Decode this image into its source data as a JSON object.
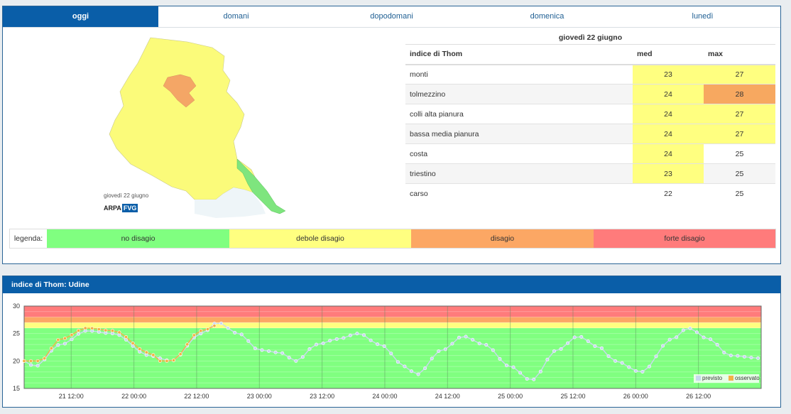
{
  "tabs": [
    {
      "label": "oggi",
      "active": true
    },
    {
      "label": "domani",
      "active": false
    },
    {
      "label": "dopodomani",
      "active": false
    },
    {
      "label": "domenica",
      "active": false
    },
    {
      "label": "lunedì",
      "active": false
    }
  ],
  "map": {
    "date_caption": "giovedì 22 giugno",
    "logo_a": "ARPA",
    "logo_b": "FVG"
  },
  "table": {
    "date": "giovedì 22 giugno",
    "headers": {
      "name": "indice di Thom",
      "med": "med",
      "max": "max"
    },
    "rows": [
      {
        "name": "monti",
        "med": "23",
        "max": "27",
        "med_class": "y",
        "max_class": "y"
      },
      {
        "name": "tolmezzino",
        "med": "24",
        "max": "28",
        "med_class": "y",
        "max_class": "o"
      },
      {
        "name": "colli alta pianura",
        "med": "24",
        "max": "27",
        "med_class": "y",
        "max_class": "y"
      },
      {
        "name": "bassa media pianura",
        "med": "24",
        "max": "27",
        "med_class": "y",
        "max_class": "y"
      },
      {
        "name": "costa",
        "med": "24",
        "max": "25",
        "med_class": "y",
        "max_class": ""
      },
      {
        "name": "triestino",
        "med": "23",
        "max": "25",
        "med_class": "y",
        "max_class": ""
      },
      {
        "name": "carso",
        "med": "22",
        "max": "25",
        "med_class": "",
        "max_class": ""
      }
    ]
  },
  "legend": {
    "label": "legenda:",
    "items": [
      "no disagio",
      "debole disagio",
      "disagio",
      "forte disagio"
    ]
  },
  "bottom": {
    "title": "indice di Thom: Udine"
  },
  "colors": {
    "accent": "#0a5ea8",
    "no_disagio": "#80ff80",
    "debole": "#ffff80",
    "disagio": "#fca764",
    "forte": "#ff7b7b"
  },
  "chart_data": {
    "type": "line",
    "ylim": [
      15,
      30
    ],
    "yticks": [
      "15",
      "20",
      "25",
      "30"
    ],
    "xticks": [
      "21 12:00",
      "22 00:00",
      "22 12:00",
      "23 00:00",
      "23 12:00",
      "24 00:00",
      "24 12:00",
      "25 00:00",
      "25 12:00",
      "26 00:00",
      "26 12:00"
    ],
    "xrange_hours": [
      0,
      141
    ],
    "bands": [
      {
        "from": 15,
        "to": 26,
        "color": "#80ff80"
      },
      {
        "from": 26,
        "to": 27,
        "color": "#ffff80"
      },
      {
        "from": 27,
        "to": 28,
        "color": "#fca764"
      },
      {
        "from": 28,
        "to": 30,
        "color": "#ff7b7b"
      }
    ],
    "series": [
      {
        "name": "previsto",
        "color": "#c8d8f0",
        "anchors": [
          [
            0,
            20
          ],
          [
            2,
            19
          ],
          [
            7,
            23
          ],
          [
            12,
            25.5
          ],
          [
            17,
            25
          ],
          [
            24,
            21
          ],
          [
            26,
            20.5
          ],
          [
            28,
            20
          ],
          [
            34,
            25
          ],
          [
            37,
            27
          ],
          [
            41,
            25
          ],
          [
            45,
            22
          ],
          [
            49,
            21.5
          ],
          [
            52,
            20
          ],
          [
            56,
            23
          ],
          [
            60,
            24
          ],
          [
            64,
            25
          ],
          [
            68,
            23
          ],
          [
            73,
            19
          ],
          [
            75,
            17.5
          ],
          [
            80,
            22
          ],
          [
            84,
            24.5
          ],
          [
            88,
            23
          ],
          [
            93,
            19
          ],
          [
            97,
            16.5
          ],
          [
            102,
            22
          ],
          [
            106,
            24.5
          ],
          [
            110,
            22.5
          ],
          [
            113,
            20
          ],
          [
            118,
            18
          ],
          [
            124,
            24
          ],
          [
            127,
            26
          ],
          [
            131,
            24
          ],
          [
            135,
            21
          ],
          [
            141,
            20.5
          ]
        ]
      },
      {
        "name": "osservato",
        "color": "#f3b146",
        "anchors": [
          [
            0,
            20
          ],
          [
            3,
            20
          ],
          [
            7,
            24
          ],
          [
            12,
            26
          ],
          [
            17,
            25.5
          ],
          [
            24,
            21.5
          ],
          [
            26,
            20
          ],
          [
            28,
            20
          ],
          [
            34,
            25.5
          ],
          [
            37,
            26.5
          ]
        ]
      }
    ]
  }
}
